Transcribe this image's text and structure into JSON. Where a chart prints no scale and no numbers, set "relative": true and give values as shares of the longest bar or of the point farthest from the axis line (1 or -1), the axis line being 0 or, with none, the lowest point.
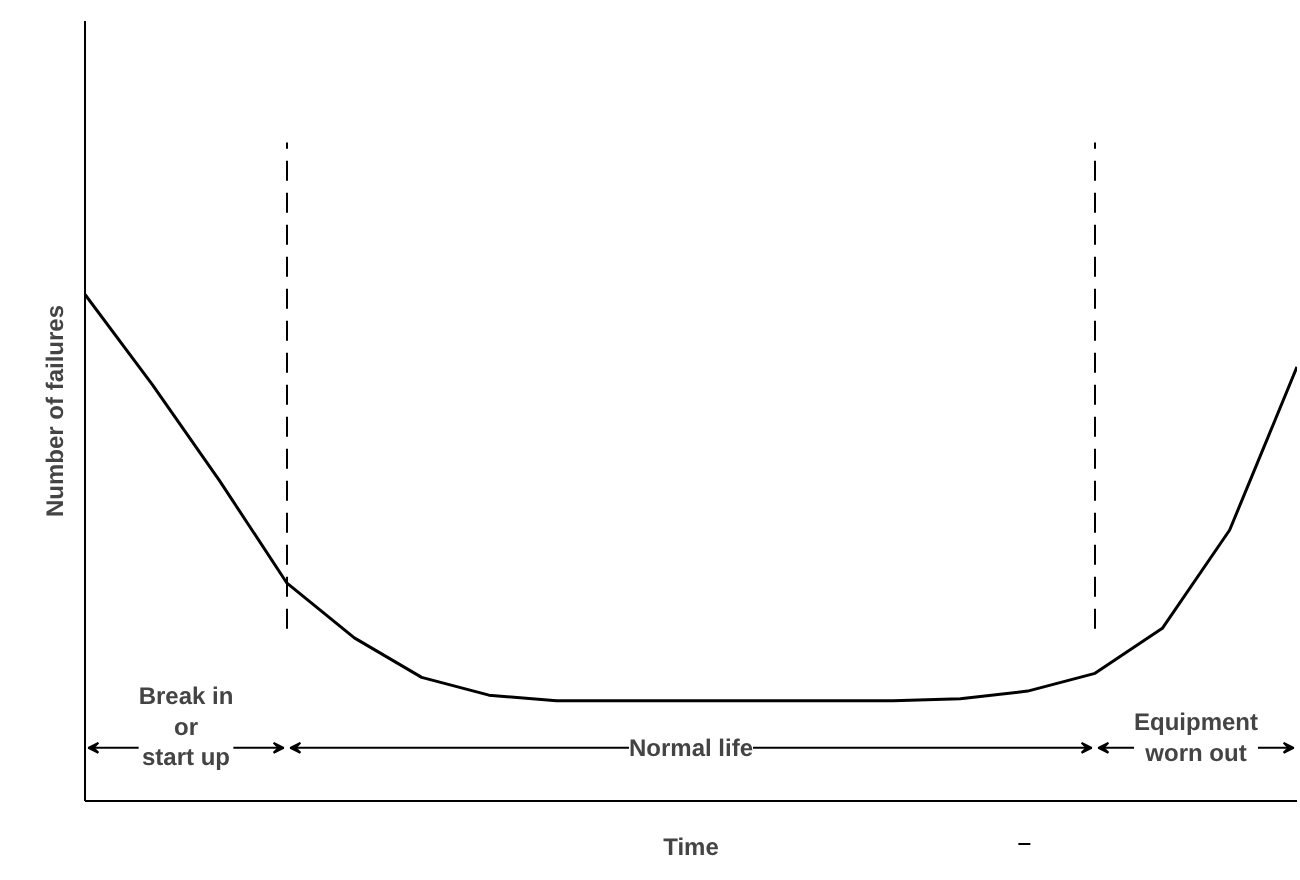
{
  "chart_data": {
    "type": "line",
    "relative": true,
    "xlabel": "Time",
    "ylabel": "Number of failures",
    "categories": [
      null,
      null,
      null,
      null,
      null,
      null,
      null,
      null,
      null,
      null,
      null,
      null,
      null,
      null,
      null,
      null,
      null,
      null,
      null
    ],
    "series": [
      {
        "color": "#000000",
        "values": [
          1.0,
          0.822,
          0.632,
          0.43,
          0.322,
          0.244,
          0.209,
          0.198,
          0.198,
          0.198,
          0.198,
          0.198,
          0.198,
          0.202,
          0.217,
          0.252,
          0.341,
          0.535,
          0.857
        ]
      }
    ],
    "annotations": [
      "Break in\nor\nstart up",
      "Normal life",
      "Equipment\nworn out"
    ],
    "grid": false,
    "marker": "none",
    "line_style": "solid"
  }
}
